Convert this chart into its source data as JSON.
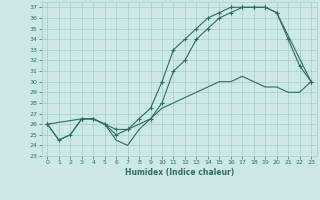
{
  "xlabel": "Humidex (Indice chaleur)",
  "bg_color": "#cce8e8",
  "grid_color": "#aacccc",
  "line_color": "#2a7060",
  "xlim": [
    -0.5,
    23.5
  ],
  "ylim": [
    23,
    37.5
  ],
  "xticks": [
    0,
    1,
    2,
    3,
    4,
    5,
    6,
    7,
    8,
    9,
    10,
    11,
    12,
    13,
    14,
    15,
    16,
    17,
    18,
    19,
    20,
    21,
    22,
    23
  ],
  "yticks": [
    23,
    24,
    25,
    26,
    27,
    28,
    29,
    30,
    31,
    32,
    33,
    34,
    35,
    36,
    37
  ],
  "line1_x": [
    0,
    1,
    2,
    3,
    4,
    5,
    6,
    7,
    8,
    9,
    10,
    11,
    12,
    13,
    14,
    15,
    16,
    17,
    18,
    19,
    20,
    21,
    22,
    23
  ],
  "line1_y": [
    26,
    24.5,
    25,
    26.5,
    26.5,
    26,
    25,
    25.5,
    26.5,
    27.5,
    30,
    33,
    34,
    35,
    36,
    36.5,
    37,
    37,
    37,
    37,
    36.5,
    34,
    31.5,
    30
  ],
  "line1_markers": true,
  "line2_x": [
    0,
    3,
    4,
    5,
    6,
    7,
    9,
    10,
    11,
    12,
    13,
    14,
    15,
    16,
    17,
    18,
    19,
    20,
    23
  ],
  "line2_y": [
    26,
    26.5,
    26.5,
    26,
    25.5,
    25.5,
    26.5,
    28,
    31,
    32,
    34,
    35,
    36,
    36.5,
    37,
    37,
    37,
    36.5,
    30
  ],
  "line2_markers": true,
  "line3_x": [
    0,
    1,
    2,
    3,
    4,
    5,
    6,
    7,
    8,
    9,
    10,
    11,
    12,
    13,
    14,
    15,
    16,
    17,
    18,
    19,
    20,
    21,
    22,
    23
  ],
  "line3_y": [
    26,
    24.5,
    25,
    26.5,
    26.5,
    26,
    24.5,
    24,
    25.5,
    26.5,
    27.5,
    28,
    28.5,
    29,
    29.5,
    30,
    30,
    30.5,
    30,
    29.5,
    29.5,
    29,
    29,
    30
  ],
  "line3_markers": false
}
